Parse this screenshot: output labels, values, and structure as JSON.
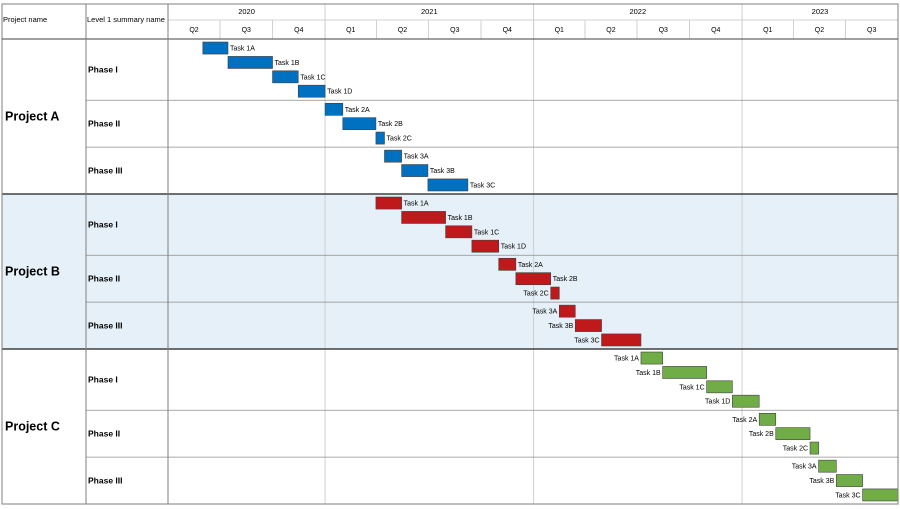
{
  "header": {
    "col1": "Project name",
    "col2": "Level 1 summary name"
  },
  "colors": {
    "project_a": "#0070c0",
    "project_b": "#c0191b",
    "project_c": "#70ad47",
    "band_b": "#e6f0f8",
    "grid": "#d0d0d0",
    "border": "#7f7f7f"
  },
  "chart_data": {
    "type": "gantt",
    "timeline_start": "2020-04-01",
    "timeline_end": "2023-10-01",
    "years": [
      {
        "label": "2020",
        "start": "2020-04-01",
        "end": "2021-01-01"
      },
      {
        "label": "2021",
        "start": "2021-01-01",
        "end": "2022-01-01"
      },
      {
        "label": "2022",
        "start": "2022-01-01",
        "end": "2023-01-01"
      },
      {
        "label": "2023",
        "start": "2023-01-01",
        "end": "2023-10-01"
      }
    ],
    "quarters": [
      {
        "label": "Q2",
        "start": "2020-04-01"
      },
      {
        "label": "Q3",
        "start": "2020-07-01"
      },
      {
        "label": "Q4",
        "start": "2020-10-01"
      },
      {
        "label": "Q1",
        "start": "2021-01-01"
      },
      {
        "label": "Q2",
        "start": "2021-04-01"
      },
      {
        "label": "Q3",
        "start": "2021-07-01"
      },
      {
        "label": "Q4",
        "start": "2021-10-01"
      },
      {
        "label": "Q1",
        "start": "2022-01-01"
      },
      {
        "label": "Q2",
        "start": "2022-04-01"
      },
      {
        "label": "Q3",
        "start": "2022-07-01"
      },
      {
        "label": "Q4",
        "start": "2022-10-01"
      },
      {
        "label": "Q1",
        "start": "2023-01-01"
      },
      {
        "label": "Q2",
        "start": "2023-04-01"
      },
      {
        "label": "Q3",
        "start": "2023-07-01"
      }
    ],
    "projects": [
      {
        "name": "Project A",
        "color_key": "project_a",
        "label_side": "right",
        "shaded": false,
        "phases": [
          {
            "name": "Phase I",
            "tasks": [
              {
                "label": "Task 1A",
                "start": "2020-06-01",
                "end": "2020-07-15"
              },
              {
                "label": "Task 1B",
                "start": "2020-07-15",
                "end": "2020-10-01"
              },
              {
                "label": "Task 1C",
                "start": "2020-10-01",
                "end": "2020-11-15"
              },
              {
                "label": "Task 1D",
                "start": "2020-11-15",
                "end": "2021-01-01"
              }
            ]
          },
          {
            "name": "Phase II",
            "tasks": [
              {
                "label": "Task 2A",
                "start": "2021-01-01",
                "end": "2021-02-01"
              },
              {
                "label": "Task 2B",
                "start": "2021-02-01",
                "end": "2021-03-31"
              },
              {
                "label": "Task 2C",
                "start": "2021-03-31",
                "end": "2021-04-15"
              }
            ]
          },
          {
            "name": "Phase III",
            "tasks": [
              {
                "label": "Task 3A",
                "start": "2021-04-15",
                "end": "2021-05-15"
              },
              {
                "label": "Task 3B",
                "start": "2021-05-15",
                "end": "2021-06-30"
              },
              {
                "label": "Task 3C",
                "start": "2021-06-30",
                "end": "2021-09-08"
              }
            ]
          }
        ]
      },
      {
        "name": "Project B",
        "color_key": "project_b",
        "label_side": "right",
        "shaded": true,
        "phases": [
          {
            "name": "Phase I",
            "tasks": [
              {
                "label": "Task 1A",
                "start": "2021-03-31",
                "end": "2021-05-15"
              },
              {
                "label": "Task 1B",
                "start": "2021-05-15",
                "end": "2021-07-31"
              },
              {
                "label": "Task 1C",
                "start": "2021-07-31",
                "end": "2021-09-15"
              },
              {
                "label": "Task 1D",
                "start": "2021-09-15",
                "end": "2021-11-01"
              }
            ]
          },
          {
            "name": "Phase II",
            "tasks": [
              {
                "label": "Task 2A",
                "start": "2021-11-01",
                "end": "2021-12-01",
                "label_side": "right"
              },
              {
                "label": "Task 2B",
                "start": "2021-12-01",
                "end": "2022-01-31",
                "label_side": "right"
              },
              {
                "label": "Task 2C",
                "start": "2022-01-31",
                "end": "2022-02-15",
                "label_side": "left"
              }
            ]
          },
          {
            "name": "Phase III",
            "tasks": [
              {
                "label": "Task 3A",
                "start": "2022-02-15",
                "end": "2022-03-15",
                "label_side": "left"
              },
              {
                "label": "Task 3B",
                "start": "2022-03-15",
                "end": "2022-04-30",
                "label_side": "left"
              },
              {
                "label": "Task 3C",
                "start": "2022-04-30",
                "end": "2022-07-08",
                "label_side": "left"
              }
            ]
          }
        ]
      },
      {
        "name": "Project C",
        "color_key": "project_c",
        "label_side": "left",
        "shaded": false,
        "phases": [
          {
            "name": "Phase I",
            "tasks": [
              {
                "label": "Task 1A",
                "start": "2022-07-08",
                "end": "2022-08-15"
              },
              {
                "label": "Task 1B",
                "start": "2022-08-15",
                "end": "2022-10-31"
              },
              {
                "label": "Task 1C",
                "start": "2022-10-31",
                "end": "2022-12-15"
              },
              {
                "label": "Task 1D",
                "start": "2022-12-15",
                "end": "2023-01-31"
              }
            ]
          },
          {
            "name": "Phase II",
            "tasks": [
              {
                "label": "Task 2A",
                "start": "2023-01-31",
                "end": "2023-03-01"
              },
              {
                "label": "Task 2B",
                "start": "2023-03-01",
                "end": "2023-04-30"
              },
              {
                "label": "Task 2C",
                "start": "2023-04-30",
                "end": "2023-05-15"
              }
            ]
          },
          {
            "name": "Phase III",
            "tasks": [
              {
                "label": "Task 3A",
                "start": "2023-05-15",
                "end": "2023-06-15"
              },
              {
                "label": "Task 3B",
                "start": "2023-06-15",
                "end": "2023-07-31"
              },
              {
                "label": "Task 3C",
                "start": "2023-07-31",
                "end": "2023-10-01"
              }
            ]
          }
        ]
      }
    ]
  }
}
